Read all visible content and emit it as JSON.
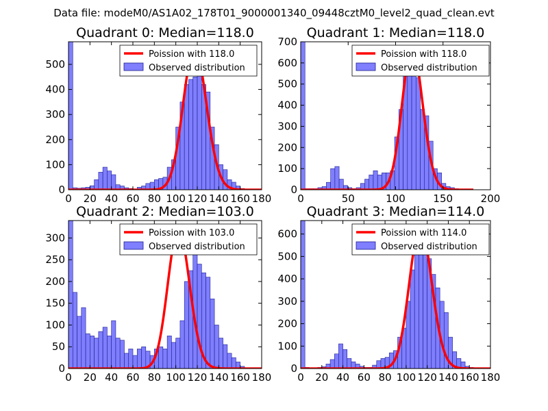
{
  "suptitle": "Data file: modeM0/AS1A02_178T01_9000001340_09448cztM0_level2_quad_clean.evt",
  "colors": {
    "bars": "#7f7fff",
    "bar_edge": "#1c1c8c",
    "fit": "#ff0000",
    "axes": "#000000"
  },
  "chart_data": [
    {
      "type": "bar",
      "title": "Quadrant 0: Median=118.0",
      "xlim": [
        0,
        180
      ],
      "ylim": [
        0,
        590
      ],
      "xticks": [
        0,
        20,
        40,
        60,
        80,
        100,
        120,
        140,
        160,
        180
      ],
      "yticks": [
        0,
        100,
        200,
        300,
        400,
        500
      ],
      "bin_width": 4,
      "bins": [
        0,
        4,
        8,
        12,
        16,
        20,
        24,
        28,
        32,
        36,
        40,
        44,
        48,
        52,
        56,
        60,
        64,
        68,
        72,
        76,
        80,
        84,
        88,
        92,
        96,
        100,
        104,
        108,
        112,
        116,
        120,
        124,
        128,
        132,
        136,
        140,
        144,
        148,
        152,
        156,
        160,
        164
      ],
      "values": [
        590,
        8,
        6,
        8,
        10,
        16,
        40,
        70,
        90,
        75,
        60,
        20,
        15,
        8,
        5,
        3,
        10,
        15,
        25,
        30,
        40,
        45,
        50,
        90,
        120,
        250,
        350,
        420,
        440,
        450,
        510,
        420,
        390,
        250,
        180,
        100,
        80,
        40,
        30,
        15,
        5,
        3
      ],
      "fit_label": "Poission with 118.0",
      "hist_label": "Observed distribution",
      "poisson_lambda": 118.0,
      "poisson_peak": 565
    },
    {
      "type": "bar",
      "title": "Quadrant 1: Median=118.0",
      "xlim": [
        0,
        200
      ],
      "ylim": [
        0,
        700
      ],
      "xticks": [
        0,
        50,
        100,
        150,
        200
      ],
      "yticks": [
        0,
        100,
        200,
        300,
        400,
        500,
        600,
        700
      ],
      "bin_width": 4.5,
      "bins": [
        0,
        4.5,
        9,
        13.5,
        18,
        22.5,
        27,
        31.5,
        36,
        40.5,
        45,
        49.5,
        54,
        58.5,
        63,
        67.5,
        72,
        76.5,
        81,
        85.5,
        90,
        94.5,
        99,
        103.5,
        108,
        112.5,
        117,
        121.5,
        126,
        130.5,
        135,
        139.5,
        144,
        148.5,
        153,
        157.5,
        162,
        166.5,
        171,
        175.5
      ],
      "values": [
        700,
        5,
        5,
        5,
        10,
        15,
        35,
        100,
        110,
        50,
        20,
        10,
        5,
        10,
        30,
        50,
        70,
        90,
        70,
        80,
        80,
        90,
        250,
        380,
        560,
        640,
        560,
        530,
        380,
        350,
        230,
        100,
        80,
        30,
        15,
        10,
        5,
        3,
        2,
        2
      ],
      "fit_label": "Poission with 118.0",
      "hist_label": "Observed distribution",
      "poisson_lambda": 118.0,
      "poisson_peak": 670
    },
    {
      "type": "bar",
      "title": "Quadrant 2: Median=103.0",
      "xlim": [
        0,
        180
      ],
      "ylim": [
        0,
        340
      ],
      "xticks": [
        0,
        20,
        40,
        60,
        80,
        100,
        120,
        140,
        160,
        180
      ],
      "yticks": [
        0,
        50,
        100,
        150,
        200,
        250,
        300
      ],
      "bin_width": 4,
      "bins": [
        0,
        4,
        8,
        12,
        16,
        20,
        24,
        28,
        32,
        36,
        40,
        44,
        48,
        52,
        56,
        60,
        64,
        68,
        72,
        76,
        80,
        84,
        88,
        92,
        96,
        100,
        104,
        108,
        112,
        116,
        120,
        124,
        128,
        132,
        136,
        140,
        144,
        148,
        152,
        156,
        160
      ],
      "values": [
        340,
        175,
        120,
        140,
        80,
        75,
        70,
        85,
        95,
        75,
        110,
        70,
        65,
        35,
        45,
        30,
        45,
        50,
        40,
        30,
        45,
        50,
        45,
        75,
        60,
        70,
        110,
        200,
        225,
        270,
        240,
        220,
        210,
        160,
        100,
        70,
        55,
        35,
        25,
        15,
        5
      ],
      "fit_label": "Poission with 103.0",
      "hist_label": "Observed distribution",
      "poisson_lambda": 103.0,
      "poisson_peak": 320
    },
    {
      "type": "bar",
      "title": "Quadrant 3: Median=114.0",
      "xlim": [
        0,
        180
      ],
      "ylim": [
        0,
        660
      ],
      "xticks": [
        0,
        20,
        40,
        60,
        80,
        100,
        120,
        140,
        160,
        180
      ],
      "yticks": [
        0,
        100,
        200,
        300,
        400,
        500,
        600
      ],
      "bin_width": 4,
      "bins": [
        0,
        4,
        8,
        12,
        16,
        20,
        24,
        28,
        32,
        36,
        40,
        44,
        48,
        52,
        56,
        60,
        64,
        68,
        72,
        76,
        80,
        84,
        88,
        92,
        96,
        100,
        104,
        108,
        112,
        116,
        120,
        124,
        128,
        132,
        136,
        140,
        144,
        148,
        152,
        156,
        160,
        164
      ],
      "values": [
        660,
        5,
        3,
        3,
        5,
        8,
        20,
        40,
        65,
        110,
        85,
        45,
        30,
        20,
        10,
        5,
        5,
        15,
        35,
        45,
        50,
        70,
        80,
        140,
        180,
        300,
        440,
        510,
        520,
        620,
        490,
        420,
        360,
        300,
        250,
        140,
        75,
        45,
        30,
        10,
        5,
        3
      ],
      "fit_label": "Poission with 114.0",
      "hist_label": "Observed distribution",
      "poisson_lambda": 114.0,
      "poisson_peak": 630
    }
  ]
}
